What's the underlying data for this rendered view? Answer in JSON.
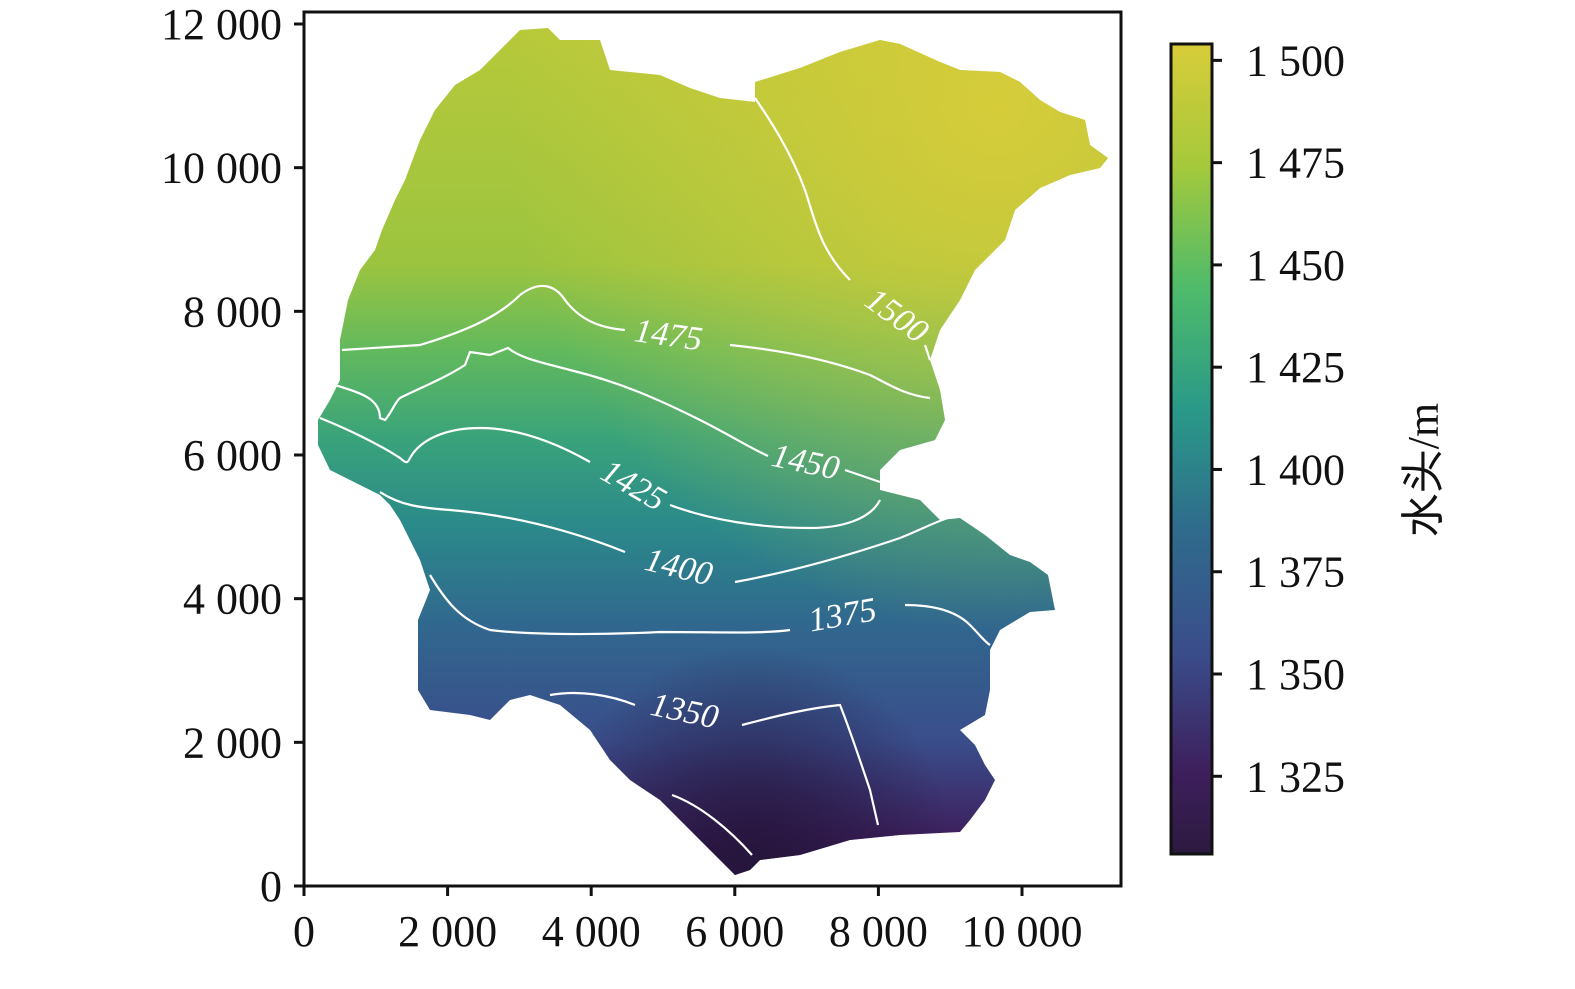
{
  "chart_data": {
    "type": "heatmap",
    "subtype": "filled contour map with contour lines",
    "title": "",
    "xlabel": "",
    "ylabel": "",
    "xlim": [
      0,
      11500
    ],
    "ylim": [
      0,
      12000
    ],
    "x_ticks": [
      0,
      2000,
      4000,
      6000,
      8000,
      10000
    ],
    "x_tick_labels": [
      "0",
      "2 000",
      "4 000",
      "6 000",
      "8 000",
      "10 000"
    ],
    "y_ticks": [
      0,
      2000,
      4000,
      6000,
      8000,
      10000,
      12000
    ],
    "y_tick_labels": [
      "0",
      "2 000",
      "4 000",
      "6 000",
      "8 000",
      "10 000",
      "12 000"
    ],
    "colorbar": {
      "label": "水头/m",
      "colormap": "viridis",
      "range": [
        1306,
        1504
      ],
      "ticks": [
        1325,
        1350,
        1375,
        1400,
        1425,
        1450,
        1475,
        1500
      ],
      "tick_labels": [
        "1 325",
        "1 350",
        "1 375",
        "1 400",
        "1 425",
        "1 450",
        "1 475",
        "1 500"
      ]
    },
    "contour_levels": [
      1350,
      1375,
      1400,
      1425,
      1450,
      1475,
      1500
    ],
    "contour_labels": [
      "1350",
      "1375",
      "1400",
      "1425",
      "1450",
      "1475",
      "1500"
    ],
    "contour_line_color": "#ffffff",
    "grid": false
  }
}
